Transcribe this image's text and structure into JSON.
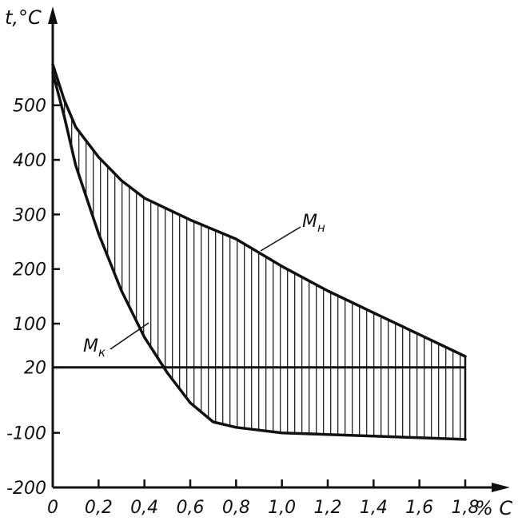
{
  "chart_data": {
    "type": "area",
    "title": "",
    "ylabel": "t,°C",
    "xlabel": "% C",
    "xlim": [
      0,
      1.8
    ],
    "ylim": [
      -200,
      600
    ],
    "x_ticks": [
      "0",
      "0,2",
      "0,4",
      "0,6",
      "0,8",
      "1,0",
      "1,2",
      "1,4",
      "1,6",
      "1,8"
    ],
    "y_ticks": [
      {
        "value": 500,
        "label": "500"
      },
      {
        "value": 400,
        "label": "400"
      },
      {
        "value": 300,
        "label": "300"
      },
      {
        "value": 200,
        "label": "200"
      },
      {
        "value": 100,
        "label": "100"
      },
      {
        "value": 20,
        "label": "20"
      },
      {
        "value": -100,
        "label": "-100"
      },
      {
        "value": -200,
        "label": "-200"
      }
    ],
    "series": [
      {
        "name": "Mн",
        "label_main": "M",
        "label_sub": "н",
        "x": [
          0,
          0.05,
          0.1,
          0.2,
          0.3,
          0.4,
          0.6,
          0.8,
          1.0,
          1.2,
          1.4,
          1.6,
          1.8
        ],
        "y": [
          575,
          510,
          460,
          405,
          362,
          330,
          290,
          255,
          205,
          160,
          120,
          80,
          40
        ]
      },
      {
        "name": "Mк",
        "label_main": "M",
        "label_sub": "к",
        "x": [
          0,
          0.05,
          0.1,
          0.2,
          0.3,
          0.4,
          0.5,
          0.6,
          0.7,
          0.8,
          1.0,
          1.2,
          1.4,
          1.6,
          1.8
        ],
        "y": [
          560,
          480,
          390,
          265,
          160,
          75,
          10,
          -45,
          -80,
          -90,
          -100,
          -103,
          -106,
          -109,
          -112
        ]
      },
      {
        "name": "",
        "x": [
          0,
          1.8
        ],
        "y": [
          20,
          20
        ]
      }
    ],
    "hatched_region": "between Mн and Mк"
  }
}
